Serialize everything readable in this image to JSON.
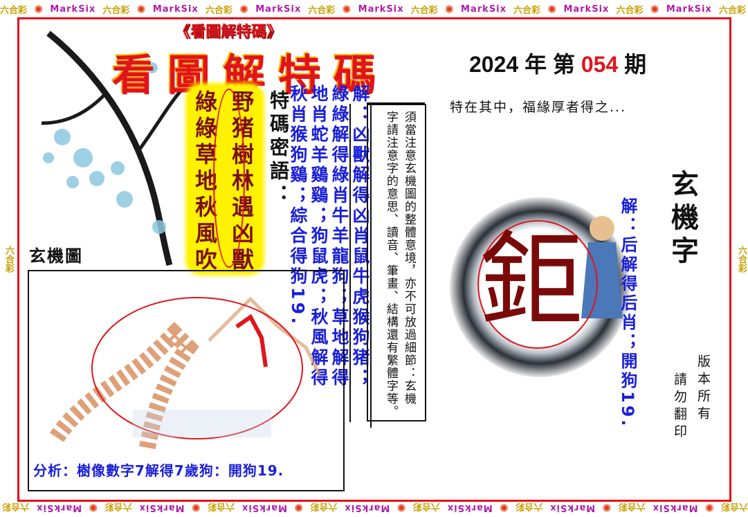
{
  "border": {
    "brand": "MarkSix",
    "lottery": "六合彩"
  },
  "header": {
    "small_title": "《看圖解特碼》",
    "big_title": "看圖解特碼",
    "issue_prefix": "2024 年 第 ",
    "issue_number": "054",
    "issue_suffix": " 期",
    "tagline": "特在其中，福緣厚者得之..."
  },
  "riddle": {
    "col_right": "野猪樹林遇凶獸",
    "col_left": "綠綠草地秋風吹"
  },
  "secret": {
    "label": "特碼密語：",
    "columns": [
      "解：凶獸解得凶肖鼠牛虎猴狗猪；",
      "綠綠解得綠肖牛羊龍狗；草地解得",
      "地肖蛇羊鷄鷄；狗鼠虎；秋風解得",
      "秋肖猴狗鷄；綜合得狗19."
    ]
  },
  "note": {
    "col1": "須當注意玄機圖的整體意境，亦不可放過細節：玄機",
    "col2": "字請注意字的意思、讀音、筆畫、結構還有繁體字等。"
  },
  "picture": {
    "label": "玄機圖",
    "analysis": "分析：樹像數字7解得7歲狗：開狗19."
  },
  "mystery_char": {
    "title": "玄機字",
    "char": "鉅",
    "answer": "解：后解得后肖；開狗19."
  },
  "copyright": {
    "line1": "版本所有",
    "line2": "請勿翻印"
  },
  "colors": {
    "frame": "#e0141c",
    "blue_text": "#1a20d8",
    "title_yellow": "#ffe800",
    "riddle_bg": "#fff200"
  }
}
